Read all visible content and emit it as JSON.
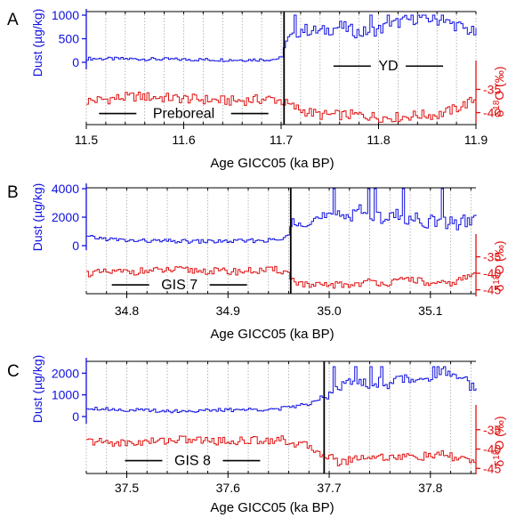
{
  "colors": {
    "dust": "#1010e0",
    "d18o": "#e01010",
    "axis": "#000000",
    "grid": "#999999"
  },
  "chart_data": [
    {
      "type": "line",
      "panel_label": "A",
      "xlabel": "Age GICC05  (ka BP)",
      "x_ticks": [
        "11.5",
        "11.6",
        "11.7",
        "11.8",
        "11.9"
      ],
      "x_tick_values": [
        11.5,
        11.6,
        11.7,
        11.8,
        11.9
      ],
      "xlim": [
        11.5,
        11.9
      ],
      "transition_x": 11.703,
      "dust_axis": {
        "label": "Dust  (µg/kg)",
        "ylim": [
          0,
          1000
        ],
        "ticks": [
          "0",
          "500",
          "1000"
        ],
        "tick_values": [
          0,
          500,
          1000
        ]
      },
      "d18o_axis": {
        "label_main": "δ",
        "label_sup": "18",
        "label_rest": "O (‰)",
        "ylim": [
          -42,
          -33
        ],
        "ticks": [
          "-35",
          "-40"
        ],
        "tick_values": [
          -35,
          -40
        ]
      },
      "annotations": [
        {
          "text": "Preboreal",
          "x": 11.6,
          "series": "d18o",
          "y": -40.2
        },
        {
          "text": "YD",
          "x": 11.81,
          "series": "dust",
          "y": -80
        }
      ],
      "series": [
        {
          "axis": "dust",
          "x": [
            11.5,
            11.55,
            11.6,
            11.65,
            11.69,
            11.7,
            11.703,
            11.72,
            11.74,
            11.76,
            11.78,
            11.8,
            11.82,
            11.84,
            11.86,
            11.88,
            11.9
          ],
          "values": [
            80,
            70,
            60,
            50,
            60,
            90,
            420,
            700,
            650,
            760,
            620,
            700,
            850,
            950,
            900,
            780,
            600
          ]
        },
        {
          "axis": "d18o",
          "x": [
            11.5,
            11.55,
            11.6,
            11.65,
            11.69,
            11.7,
            11.703,
            11.72,
            11.74,
            11.76,
            11.78,
            11.8,
            11.82,
            11.84,
            11.86,
            11.88,
            11.9
          ],
          "values": [
            -37.5,
            -36.5,
            -37,
            -37.5,
            -37,
            -37.5,
            -38,
            -39.5,
            -40.5,
            -40.5,
            -40.5,
            -41,
            -41,
            -40.5,
            -40.5,
            -39,
            -37
          ]
        }
      ]
    },
    {
      "type": "line",
      "panel_label": "B",
      "xlabel": "Age GICC05  (ka BP)",
      "x_ticks": [
        "34.8",
        "34.9",
        "35.0",
        "35.1"
      ],
      "x_tick_values": [
        34.8,
        34.9,
        35.0,
        35.1
      ],
      "xlim": [
        34.76,
        35.145
      ],
      "transition_x": 34.962,
      "dust_axis": {
        "label": "Dust  (µg/kg)",
        "ylim": [
          0,
          4000
        ],
        "ticks": [
          "0",
          "2000",
          "4000"
        ],
        "tick_values": [
          0,
          2000,
          4000
        ]
      },
      "d18o_axis": {
        "label_main": "δ",
        "label_sup": "18",
        "label_rest": "O (‰)",
        "ylim": [
          -47,
          -30
        ],
        "ticks": [
          "-35",
          "-40",
          "-45"
        ],
        "tick_values": [
          -35,
          -40,
          -45
        ]
      },
      "annotations": [
        {
          "text": "GIS 7",
          "x": 34.852,
          "series": "d18o",
          "y": -43.5
        }
      ],
      "series": [
        {
          "axis": "dust",
          "x": [
            34.76,
            34.8,
            34.85,
            34.9,
            34.95,
            34.96,
            34.962,
            34.98,
            35.0,
            35.02,
            35.03,
            35.04,
            35.06,
            35.08,
            35.1,
            35.12,
            35.145
          ],
          "values": [
            600,
            350,
            300,
            300,
            400,
            700,
            1900,
            1800,
            2000,
            2200,
            2800,
            1900,
            2200,
            1900,
            1700,
            1600,
            1800
          ]
        },
        {
          "axis": "d18o",
          "x": [
            34.76,
            34.8,
            34.85,
            34.9,
            34.95,
            34.96,
            34.962,
            34.98,
            35.0,
            35.02,
            35.04,
            35.06,
            35.08,
            35.1,
            35.12,
            35.145
          ],
          "values": [
            -40,
            -39.5,
            -39,
            -39.5,
            -39,
            -40,
            -42,
            -44,
            -43.5,
            -43.5,
            -42.5,
            -43,
            -41.5,
            -43.5,
            -43,
            -40
          ]
        }
      ]
    },
    {
      "type": "line",
      "panel_label": "C",
      "xlabel": "Age GICC05  (ka BP)",
      "x_ticks": [
        "37.5",
        "37.6",
        "37.7",
        "37.8"
      ],
      "x_tick_values": [
        37.5,
        37.6,
        37.7,
        37.8
      ],
      "xlim": [
        37.46,
        37.845
      ],
      "transition_x": 37.695,
      "dust_axis": {
        "label": "Dust  (µg/kg)",
        "ylim": [
          0,
          2300
        ],
        "ticks": [
          "0",
          "1000",
          "2000"
        ],
        "tick_values": [
          0,
          1000,
          2000
        ]
      },
      "d18o_axis": {
        "label_main": "δ",
        "label_sup": "18",
        "label_rest": "O (‰)",
        "ylim": [
          -47,
          -30
        ],
        "ticks": [
          "-35",
          "-40",
          "-45"
        ],
        "tick_values": [
          -35,
          -40,
          -45
        ]
      },
      "annotations": [
        {
          "text": "GIS 8",
          "x": 37.565,
          "series": "d18o",
          "y": -43
        }
      ],
      "series": [
        {
          "axis": "dust",
          "x": [
            37.46,
            37.5,
            37.55,
            37.6,
            37.65,
            37.68,
            37.695,
            37.71,
            37.73,
            37.76,
            37.79,
            37.81,
            37.83,
            37.845
          ],
          "values": [
            400,
            300,
            250,
            300,
            350,
            600,
            1000,
            1500,
            1500,
            1600,
            1800,
            2000,
            1700,
            1200
          ]
        },
        {
          "axis": "d18o",
          "x": [
            37.46,
            37.5,
            37.55,
            37.6,
            37.65,
            37.68,
            37.695,
            37.71,
            37.73,
            37.76,
            37.79,
            37.81,
            37.83,
            37.845
          ],
          "values": [
            -38,
            -38.5,
            -37.5,
            -38,
            -37.5,
            -39.5,
            -41.5,
            -43.5,
            -42,
            -42,
            -42,
            -41.5,
            -42.5,
            -43
          ]
        }
      ]
    }
  ]
}
